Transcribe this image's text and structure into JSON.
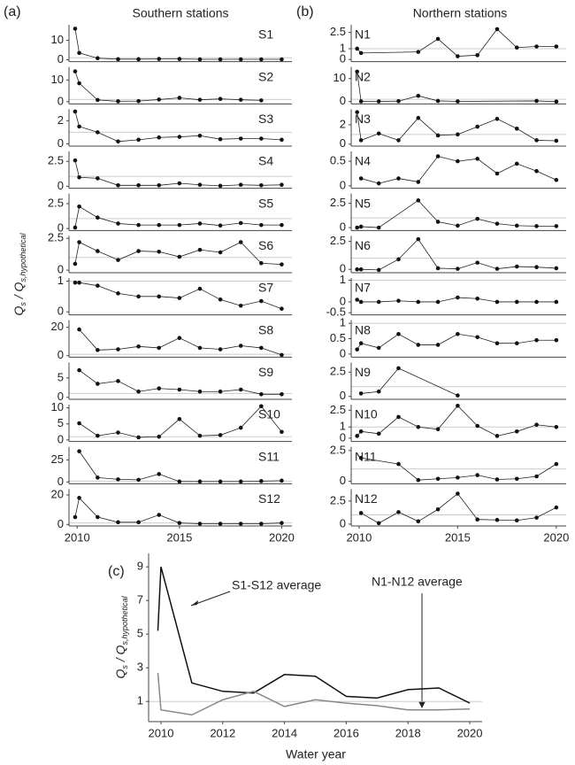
{
  "panel_labels": [
    "(a)",
    "(b)",
    "(c)"
  ],
  "headings": [
    "Southern stations",
    "Northern stations"
  ],
  "y_label": [
    "Q",
    "s",
    " / Q",
    "s,hypothetical"
  ],
  "chart_data": [
    {
      "type": "line",
      "label": "S1",
      "refline": 1,
      "xlim": [
        2009.6,
        2020.5
      ],
      "ylim": [
        -1,
        18
      ],
      "yticks": [
        0,
        10
      ],
      "x": [
        2009.9,
        2010.1,
        2011,
        2012,
        2013,
        2014,
        2015,
        2016,
        2017,
        2018,
        2019,
        2020
      ],
      "values": [
        16,
        3.5,
        0.8,
        0.3,
        0.3,
        0.4,
        0.4,
        0.2,
        0.2,
        0.2,
        0.2,
        0.2
      ]
    },
    {
      "type": "line",
      "label": "S2",
      "refline": 1,
      "xlim": [
        2009.6,
        2020.5
      ],
      "ylim": [
        -1,
        16
      ],
      "yticks": [
        0,
        10
      ],
      "x": [
        2009.9,
        2010.1,
        2011,
        2012,
        2013,
        2014,
        2015,
        2016,
        2017,
        2018,
        2019
      ],
      "values": [
        14,
        8.5,
        0.8,
        0.2,
        0.3,
        1,
        1.8,
        0.9,
        1.3,
        0.9,
        0.6
      ]
    },
    {
      "type": "line",
      "label": "S3",
      "refline": 1,
      "xlim": [
        2009.6,
        2020.5
      ],
      "ylim": [
        -0.2,
        3
      ],
      "yticks": [
        0,
        2
      ],
      "x": [
        2009.9,
        2010.1,
        2011,
        2012,
        2013,
        2014,
        2015,
        2016,
        2017,
        2018,
        2019,
        2020
      ],
      "values": [
        2.8,
        1.5,
        1,
        0.2,
        0.35,
        0.55,
        0.6,
        0.7,
        0.4,
        0.45,
        0.45,
        0.35
      ]
    },
    {
      "type": "line",
      "label": "S4",
      "refline": 1,
      "xlim": [
        2009.6,
        2020.5
      ],
      "ylim": [
        -0.2,
        3.5
      ],
      "yticks": [
        0,
        2.5
      ],
      "x": [
        2009.9,
        2010.1,
        2011,
        2012,
        2013,
        2014,
        2015,
        2016,
        2017,
        2018,
        2019,
        2020
      ],
      "values": [
        2.6,
        0.9,
        0.8,
        0.1,
        0.1,
        0.1,
        0.3,
        0.15,
        0.05,
        0.15,
        0.1,
        0.15
      ]
    },
    {
      "type": "line",
      "label": "S5",
      "refline": 1,
      "xlim": [
        2009.6,
        2020.5
      ],
      "ylim": [
        -0.2,
        3.5
      ],
      "yticks": [
        0,
        2.5
      ],
      "x": [
        2009.9,
        2010.1,
        2011,
        2012,
        2013,
        2014,
        2015,
        2016,
        2017,
        2018,
        2019,
        2020
      ],
      "values": [
        0.1,
        2.2,
        1.1,
        0.5,
        0.35,
        0.35,
        0.35,
        0.5,
        0.3,
        0.55,
        0.35,
        0.35
      ]
    },
    {
      "type": "line",
      "label": "S6",
      "refline": 1,
      "xlim": [
        2009.6,
        2020.5
      ],
      "ylim": [
        -0.2,
        2.7
      ],
      "yticks": [
        0,
        2.5
      ],
      "x": [
        2009.9,
        2010.1,
        2011,
        2012,
        2013,
        2014,
        2015,
        2016,
        2017,
        2018,
        2019,
        2020
      ],
      "values": [
        0.5,
        2.2,
        1.5,
        0.8,
        1.5,
        1.45,
        1.05,
        1.6,
        1.4,
        2.2,
        0.55,
        0.45
      ]
    },
    {
      "type": "line",
      "label": "S7",
      "refline": 1,
      "xlim": [
        2009.6,
        2020.5
      ],
      "ylim": [
        -0.1,
        1.1
      ],
      "yticks": [
        0,
        1
      ],
      "x": [
        2009.9,
        2010.1,
        2011,
        2012,
        2013,
        2014,
        2015,
        2016,
        2017,
        2018,
        2019,
        2020
      ],
      "values": [
        0.95,
        0.95,
        0.85,
        0.6,
        0.5,
        0.5,
        0.45,
        0.75,
        0.4,
        0.2,
        0.35,
        0.1
      ]
    },
    {
      "type": "line",
      "label": "S8",
      "refline": 1,
      "xlim": [
        2009.6,
        2020.5
      ],
      "ylim": [
        -1,
        25
      ],
      "yticks": [
        0,
        20
      ],
      "x": [
        2010.1,
        2011,
        2012,
        2013,
        2014,
        2015,
        2016,
        2017,
        2018,
        2019,
        2020
      ],
      "values": [
        18.5,
        4,
        4.5,
        6.5,
        5.5,
        12.5,
        5.5,
        4.5,
        7,
        5.5,
        0.5
      ]
    },
    {
      "type": "line",
      "label": "S9",
      "refline": 1,
      "xlim": [
        2009.6,
        2020.5
      ],
      "ylim": [
        -0.5,
        9
      ],
      "yticks": [
        0,
        5
      ],
      "x": [
        2010.1,
        2011,
        2012,
        2013,
        2014,
        2015,
        2016,
        2017,
        2018,
        2019,
        2020
      ],
      "values": [
        7,
        3.5,
        4.2,
        1.5,
        2.3,
        2,
        1.5,
        1.5,
        2,
        0.8,
        0.8
      ]
    },
    {
      "type": "line",
      "label": "S10",
      "refline": 1,
      "xlim": [
        2009.6,
        2020.5
      ],
      "ylim": [
        -0.5,
        11
      ],
      "yticks": [
        0,
        5,
        10
      ],
      "x": [
        2010.1,
        2011,
        2012,
        2013,
        2014,
        2015,
        2016,
        2017,
        2018,
        2019,
        2020
      ],
      "values": [
        5.2,
        1.3,
        2.3,
        0.8,
        1,
        6.5,
        1.3,
        1.5,
        3.8,
        10.5,
        2.5
      ]
    },
    {
      "type": "line",
      "label": "S11",
      "refline": 1,
      "xlim": [
        2009.6,
        2020.5
      ],
      "ylim": [
        -2,
        40
      ],
      "yticks": [
        0,
        25
      ],
      "x": [
        2010.1,
        2011,
        2012,
        2013,
        2014,
        2015,
        2016,
        2017,
        2018,
        2019,
        2020
      ],
      "values": [
        35,
        5,
        3,
        2.5,
        9,
        0.5,
        0.5,
        0.5,
        0.5,
        1,
        1.5
      ]
    },
    {
      "type": "line",
      "label": "S12",
      "refline": 1,
      "xlim": [
        2009.6,
        2020.5
      ],
      "ylim": [
        -1,
        24
      ],
      "yticks": [
        0,
        20
      ],
      "xticks": [
        2010,
        2015,
        2020
      ],
      "x": [
        2009.9,
        2010.1,
        2011,
        2012,
        2013,
        2014,
        2015,
        2016,
        2017,
        2018,
        2019,
        2020
      ],
      "values": [
        5,
        18,
        5,
        1.5,
        1.5,
        6.5,
        1,
        0.5,
        0.5,
        0.5,
        0.5,
        1
      ]
    },
    {
      "type": "line",
      "label": "N1",
      "refline": 1,
      "xlim": [
        2009.6,
        2020.5
      ],
      "ylim": [
        -0.2,
        3.2
      ],
      "yticks": [
        0,
        1,
        2.5
      ],
      "x": [
        2009.9,
        2010.1,
        2013,
        2014,
        2015,
        2016,
        2017,
        2018,
        2019,
        2020
      ],
      "values": [
        1,
        0.6,
        0.7,
        1.9,
        0.3,
        0.4,
        2.8,
        1.1,
        1.2,
        1.2
      ]
    },
    {
      "type": "line",
      "label": "N2",
      "refline": 1,
      "xlim": [
        2009.6,
        2020.5
      ],
      "ylim": [
        -1,
        15
      ],
      "yticks": [
        0,
        10
      ],
      "x": [
        2009.9,
        2010.1,
        2011,
        2012,
        2013,
        2014,
        2015,
        2019,
        2020
      ],
      "values": [
        13,
        0.1,
        0.1,
        0.2,
        2.5,
        0.3,
        0.1,
        0.3,
        0
      ]
    },
    {
      "type": "line",
      "label": "N3",
      "refline": 1,
      "xlim": [
        2009.6,
        2020.5
      ],
      "ylim": [
        -0.2,
        3.6
      ],
      "yticks": [
        0,
        2
      ],
      "x": [
        2009.9,
        2010.1,
        2011,
        2012,
        2013,
        2014,
        2015,
        2016,
        2017,
        2018,
        2019,
        2020
      ],
      "values": [
        3.3,
        0.4,
        1.1,
        0.4,
        2.7,
        0.9,
        1,
        1.8,
        2.6,
        1.6,
        0.4,
        0.35
      ]
    },
    {
      "type": "line",
      "label": "N4",
      "refline": 1,
      "xlim": [
        2009.6,
        2020.5
      ],
      "ylim": [
        -0.05,
        0.7
      ],
      "yticks": [
        0,
        0.5
      ],
      "x": [
        2010.1,
        2011,
        2012,
        2013,
        2014,
        2015,
        2016,
        2017,
        2018,
        2019,
        2020
      ],
      "values": [
        0.15,
        0.05,
        0.15,
        0.08,
        0.6,
        0.5,
        0.55,
        0.25,
        0.45,
        0.3,
        0.12
      ]
    },
    {
      "type": "line",
      "label": "N5",
      "refline": 1,
      "xlim": [
        2009.6,
        2020.5
      ],
      "ylim": [
        -0.3,
        3.5
      ],
      "yticks": [
        0,
        2.5
      ],
      "x": [
        2009.9,
        2010.1,
        2011,
        2013,
        2014,
        2015,
        2016,
        2017,
        2018,
        2019,
        2020
      ],
      "values": [
        0,
        0.1,
        0,
        2.8,
        0.6,
        0.2,
        0.9,
        0.4,
        0.2,
        0.15,
        0.15
      ]
    },
    {
      "type": "line",
      "label": "N6",
      "refline": 1,
      "xlim": [
        2009.6,
        2020.5
      ],
      "ylim": [
        -0.3,
        3
      ],
      "yticks": [
        0,
        2.5
      ],
      "x": [
        2009.9,
        2010.1,
        2011,
        2012,
        2013,
        2014,
        2015,
        2016,
        2017,
        2018,
        2019,
        2020
      ],
      "values": [
        0,
        0,
        -0.05,
        0.9,
        2.7,
        0.1,
        0.05,
        0.6,
        0.05,
        0.25,
        0.2,
        0.1
      ]
    },
    {
      "type": "line",
      "label": "N7",
      "refline": 1,
      "xlim": [
        2009.6,
        2020.5
      ],
      "ylim": [
        -0.6,
        1.1
      ],
      "yticks": [
        -0.5,
        0,
        1
      ],
      "x": [
        2009.9,
        2010.1,
        2011,
        2012,
        2013,
        2014,
        2015,
        2016,
        2017,
        2018,
        2019,
        2020
      ],
      "values": [
        0.1,
        0,
        0,
        0.05,
        0,
        0,
        0.2,
        0.15,
        0,
        0,
        0,
        0
      ]
    },
    {
      "type": "line",
      "label": "N8",
      "refline": 1,
      "xlim": [
        2009.6,
        2020.5
      ],
      "ylim": [
        -0.1,
        1.1
      ],
      "yticks": [
        0,
        0.5,
        1
      ],
      "x": [
        2009.9,
        2010.1,
        2011,
        2012,
        2013,
        2014,
        2015,
        2016,
        2017,
        2018,
        2019,
        2020
      ],
      "values": [
        0.15,
        0.35,
        0.2,
        0.65,
        0.3,
        0.3,
        0.65,
        0.55,
        0.35,
        0.35,
        0.45,
        0.45
      ]
    },
    {
      "type": "line",
      "label": "N9",
      "refline": 1,
      "xlim": [
        2009.6,
        2020.5
      ],
      "ylim": [
        -0.3,
        3.5
      ],
      "yticks": [
        0,
        2.5
      ],
      "x": [
        2010.1,
        2011,
        2012,
        2015
      ],
      "values": [
        0.3,
        0.5,
        2.9,
        0.1
      ]
    },
    {
      "type": "line",
      "label": "N10",
      "refline": 1,
      "xlim": [
        2009.6,
        2020.5
      ],
      "ylim": [
        -0.3,
        3
      ],
      "yticks": [
        0,
        1,
        2.5
      ],
      "x": [
        2009.9,
        2010.1,
        2011,
        2012,
        2013,
        2014,
        2015,
        2016,
        2017,
        2018,
        2019,
        2020
      ],
      "values": [
        0.2,
        0.6,
        0.4,
        1.9,
        1,
        0.8,
        2.9,
        1.1,
        0.2,
        0.6,
        1.2,
        1
      ]
    },
    {
      "type": "line",
      "label": "N11",
      "refline": 1,
      "xlim": [
        2009.6,
        2020.5
      ],
      "ylim": [
        -0.2,
        2.8
      ],
      "yticks": [
        0,
        2.5
      ],
      "x": [
        2010.1,
        2012,
        2013,
        2014,
        2015,
        2016,
        2017,
        2018,
        2019,
        2020
      ],
      "values": [
        1.9,
        1.4,
        0.1,
        0.2,
        0.3,
        0.5,
        0.15,
        0.2,
        0.4,
        1.4
      ]
    },
    {
      "type": "line",
      "label": "N12",
      "refline": 1,
      "xlim": [
        2009.6,
        2020.5
      ],
      "ylim": [
        -0.2,
        3.8
      ],
      "yticks": [
        0,
        2.5
      ],
      "xticks": [
        2010,
        2015,
        2020
      ],
      "x": [
        2010.1,
        2011,
        2012,
        2013,
        2014,
        2015,
        2016,
        2017,
        2018,
        2019,
        2020
      ],
      "values": [
        1.2,
        0.1,
        1.3,
        0.3,
        1.6,
        3.3,
        0.5,
        0.45,
        0.4,
        0.7,
        1.8
      ]
    },
    {
      "type": "line",
      "xlabel": "Water year",
      "ylabel": [
        "Q",
        "s",
        " / Q",
        "s,hypothetical"
      ],
      "refline": 1,
      "xlim": [
        2009.6,
        2020.4
      ],
      "ylim": [
        -0.2,
        9.8
      ],
      "xticks": [
        2010,
        2012,
        2014,
        2016,
        2018,
        2020
      ],
      "yticks": [
        1,
        3,
        5,
        7,
        9
      ],
      "x": [
        2009.9,
        2010,
        2011,
        2012,
        2013,
        2014,
        2015,
        2016,
        2017,
        2018,
        2019,
        2020
      ],
      "series": [
        {
          "name": "S1-S12 average",
          "color": "#111111",
          "values": [
            5.2,
            9,
            2.1,
            1.6,
            1.5,
            2.6,
            2.5,
            1.3,
            1.2,
            1.7,
            1.8,
            0.9
          ]
        },
        {
          "name": "N1-N12 average",
          "color": "#888888",
          "values": [
            2.7,
            0.5,
            0.2,
            1.1,
            1.6,
            0.7,
            1.1,
            0.9,
            0.75,
            0.5,
            0.5,
            0.55
          ]
        }
      ]
    }
  ]
}
